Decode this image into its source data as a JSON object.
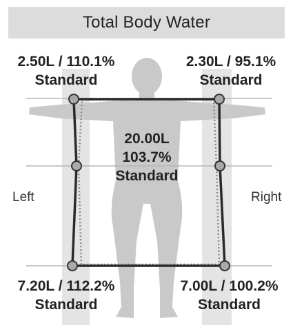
{
  "title": "Total Body Water",
  "side_labels": {
    "left": "Left",
    "right": "Right"
  },
  "colors": {
    "header_bg": "#dcdcdc",
    "silhouette": "#c9c9c9",
    "band": "#e4e4e4",
    "grid_line": "#b5b5b5",
    "solid_line": "#2a2a2a",
    "dotted_line": "#8a8a8a",
    "node_fill": "#a9a9a9",
    "node_stroke": "#333333",
    "text": "#222222"
  },
  "chart_data": {
    "type": "segmental-body-diagram",
    "title": "Total Body Water",
    "unit": "L",
    "segments": [
      {
        "id": "left-arm",
        "side": "left",
        "volume": "2.50L",
        "percent": "110.1%",
        "status": "Standard"
      },
      {
        "id": "right-arm",
        "side": "right",
        "volume": "2.30L",
        "percent": "95.1%",
        "status": "Standard"
      },
      {
        "id": "trunk",
        "side": "center",
        "volume": "20.00L",
        "percent": "103.7%",
        "status": "Standard"
      },
      {
        "id": "left-leg",
        "side": "left",
        "volume": "7.20L",
        "percent": "112.2%",
        "status": "Standard"
      },
      {
        "id": "right-leg",
        "side": "right",
        "volume": "7.00L",
        "percent": "100.2%",
        "status": "Standard"
      }
    ],
    "labels": {
      "left_arm": {
        "line1": "2.50L / 110.1%",
        "line2": "Standard"
      },
      "right_arm": {
        "line1": "2.30L / 95.1%",
        "line2": "Standard"
      },
      "trunk": {
        "line1": "20.00L",
        "line2": "103.7%",
        "line3": "Standard"
      },
      "left_leg": {
        "line1": "7.20L / 112.2%",
        "line2": "Standard"
      },
      "right_leg": {
        "line1": "7.00L / 100.2%",
        "line2": "Standard"
      }
    },
    "percent_values": {
      "left_arm": 110.1,
      "right_arm": 95.1,
      "trunk": 103.7,
      "left_leg": 112.2,
      "right_leg": 100.2
    },
    "standard_percent": 100
  }
}
